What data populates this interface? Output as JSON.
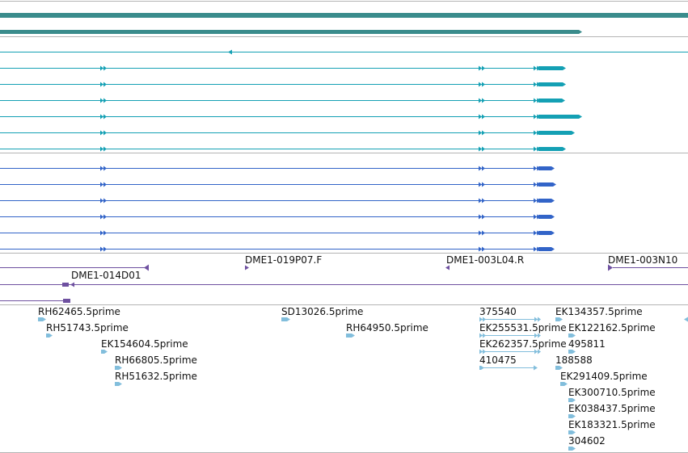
{
  "colors": {
    "separator": "#b4b4b4",
    "track_teal_dark": "#3a8c8c",
    "track_teal": "#14a0b4",
    "track_blue": "#3264c8",
    "track_purple": "#6e50a0",
    "track_light_blue": "#82bedc",
    "label_text": "#111111"
  },
  "tracks": {
    "clone_labels": [
      {
        "id": "DME1-019P07.F",
        "text": "DME1-019P07.F"
      },
      {
        "id": "DME1-003L04.R",
        "text": "DME1-003L04.R"
      },
      {
        "id": "DME1-003N10",
        "text": "DME1-003N10"
      },
      {
        "id": "DME1-014D01",
        "text": "DME1-014D01"
      }
    ],
    "est_labels": [
      {
        "id": "RH62465",
        "text": "RH62465.5prime"
      },
      {
        "id": "RH51743",
        "text": "RH51743.5prime"
      },
      {
        "id": "EK154604",
        "text": "EK154604.5prime"
      },
      {
        "id": "RH66805",
        "text": "RH66805.5prime"
      },
      {
        "id": "RH51632",
        "text": "RH51632.5prime"
      },
      {
        "id": "SD13026",
        "text": "SD13026.5prime"
      },
      {
        "id": "RH64950",
        "text": "RH64950.5prime"
      },
      {
        "id": "375540",
        "text": "375540"
      },
      {
        "id": "EK255531",
        "text": "EK255531.5prime"
      },
      {
        "id": "EK262357",
        "text": "EK262357.5prime"
      },
      {
        "id": "410475",
        "text": "410475"
      },
      {
        "id": "EK134357",
        "text": "EK134357.5prime"
      },
      {
        "id": "EK122162",
        "text": "EK122162.5prime"
      },
      {
        "id": "495811",
        "text": "495811"
      },
      {
        "id": "188588",
        "text": "188588"
      },
      {
        "id": "EK291409",
        "text": "EK291409.5prime"
      },
      {
        "id": "EK300710",
        "text": "EK300710.5prime"
      },
      {
        "id": "EK038437",
        "text": "EK038437.5prime"
      },
      {
        "id": "EK183321",
        "text": "EK183321.5prime"
      },
      {
        "id": "304602",
        "text": "304602"
      }
    ]
  }
}
